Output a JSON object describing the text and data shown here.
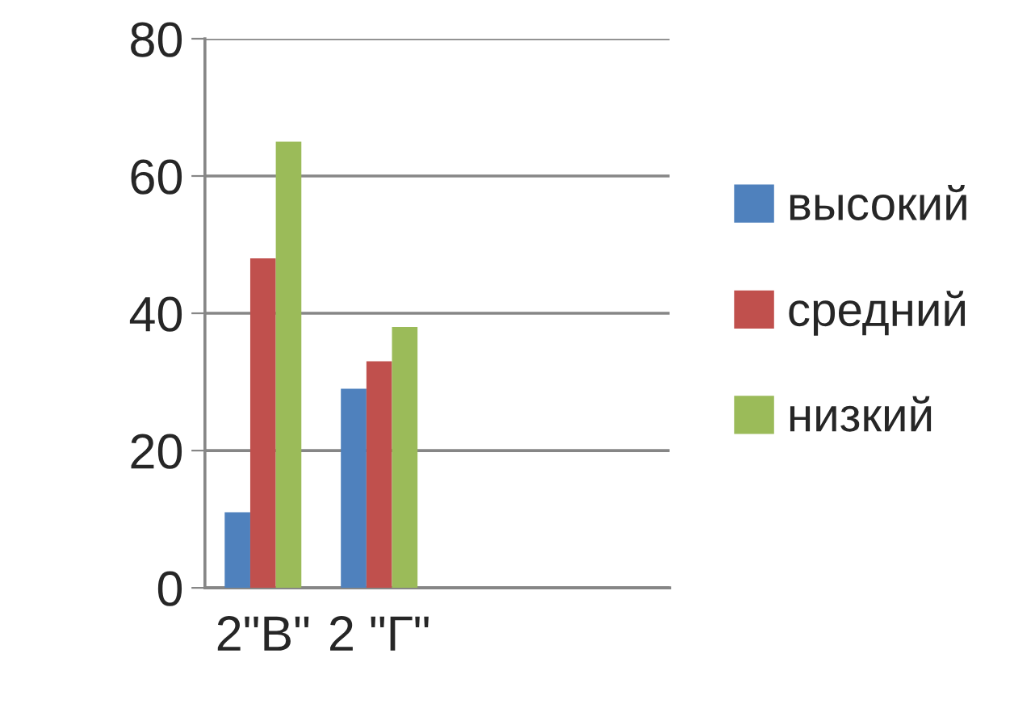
{
  "chart_data": {
    "type": "bar",
    "categories": [
      "2\"В\"",
      "2 \"Г\"",
      null,
      null
    ],
    "series": [
      {
        "name": "высокий",
        "color": "#4f81bd",
        "values": [
          11,
          29,
          null,
          null
        ]
      },
      {
        "name": "средний",
        "color": "#c0504d",
        "values": [
          48,
          33,
          null,
          null
        ]
      },
      {
        "name": "низкий",
        "color": "#9bbb59",
        "values": [
          65,
          38,
          null,
          null
        ]
      }
    ],
    "ylim": [
      0,
      80
    ],
    "yticks": [
      0,
      20,
      40,
      60,
      80
    ],
    "grid": "y",
    "legend": "right"
  }
}
